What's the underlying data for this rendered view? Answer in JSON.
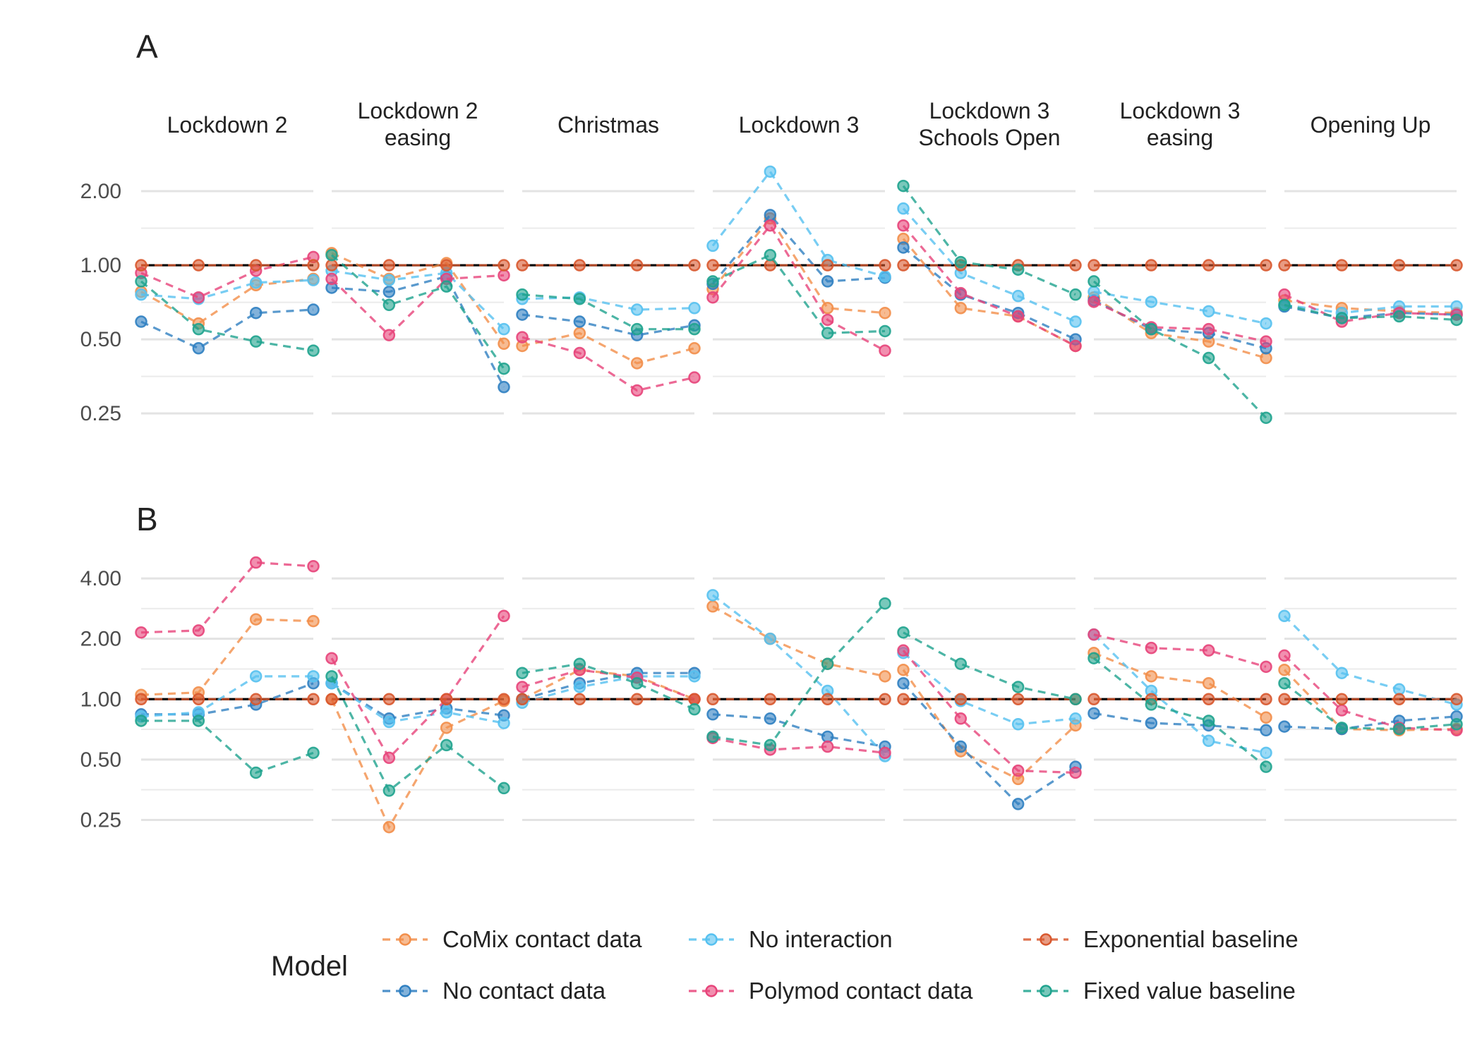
{
  "panels": [
    "A",
    "B"
  ],
  "facets": [
    [
      "Lockdown 2"
    ],
    [
      "Lockdown 2",
      "easing"
    ],
    [
      "Christmas"
    ],
    [
      "Lockdown 3"
    ],
    [
      "Lockdown 3",
      "Schools Open"
    ],
    [
      "Lockdown 3",
      "easing"
    ],
    [
      "Opening Up"
    ]
  ],
  "legend": {
    "title": "Model",
    "items": [
      {
        "name": "CoMix contact data",
        "color": "#F28E4A"
      },
      {
        "name": "No contact data",
        "color": "#2F7FC1"
      },
      {
        "name": "No interaction",
        "color": "#56C1F0"
      },
      {
        "name": "Polymod contact data",
        "color": "#E7447A"
      },
      {
        "name": "Exponential baseline",
        "color": "#D8582E"
      },
      {
        "name": "Fixed value baseline",
        "color": "#1FA38E"
      }
    ]
  },
  "chart_data": [
    {
      "type": "line",
      "panel": "A",
      "y_scale": "log2",
      "ylim": [
        0.2,
        2.8
      ],
      "yticks": [
        0.25,
        0.5,
        1.0,
        2.0
      ],
      "ytick_labels": [
        "0.25",
        "0.50",
        "1.00",
        "2.00"
      ],
      "x_points_per_facet": 4,
      "reference_line": 1.0,
      "series": [
        {
          "name": "CoMix contact data",
          "facets": [
            [
              0.78,
              0.58,
              0.83,
              0.88
            ],
            [
              1.12,
              0.88,
              1.02,
              0.48
            ],
            [
              0.47,
              0.53,
              0.4,
              0.46
            ],
            [
              0.8,
              1.55,
              0.67,
              0.64
            ],
            [
              1.28,
              0.67,
              0.62,
              0.47
            ],
            [
              0.74,
              0.53,
              0.49,
              0.42
            ],
            [
              0.72,
              0.67,
              0.65,
              0.64
            ]
          ]
        },
        {
          "name": "No contact data",
          "facets": [
            [
              0.59,
              0.46,
              0.64,
              0.66
            ],
            [
              0.81,
              0.78,
              0.9,
              0.32
            ],
            [
              0.63,
              0.59,
              0.52,
              0.57
            ],
            [
              0.84,
              1.6,
              0.86,
              0.89
            ],
            [
              1.18,
              0.76,
              0.64,
              0.5
            ],
            [
              0.72,
              0.55,
              0.53,
              0.46
            ],
            [
              0.68,
              0.61,
              0.64,
              0.63
            ]
          ]
        },
        {
          "name": "No interaction",
          "facets": [
            [
              0.76,
              0.73,
              0.85,
              0.87
            ],
            [
              0.95,
              0.87,
              0.93,
              0.55
            ],
            [
              0.73,
              0.74,
              0.66,
              0.67
            ],
            [
              1.2,
              2.4,
              1.05,
              0.9
            ],
            [
              1.7,
              0.93,
              0.75,
              0.59
            ],
            [
              0.78,
              0.71,
              0.65,
              0.58
            ],
            [
              0.69,
              0.64,
              0.68,
              0.68
            ]
          ]
        },
        {
          "name": "Polymod contact data",
          "facets": [
            [
              0.93,
              0.74,
              0.95,
              1.08
            ],
            [
              0.88,
              0.52,
              0.88,
              0.91
            ],
            [
              0.51,
              0.44,
              0.31,
              0.35
            ],
            [
              0.74,
              1.45,
              0.6,
              0.45
            ],
            [
              1.45,
              0.77,
              0.62,
              0.47
            ],
            [
              0.71,
              0.56,
              0.55,
              0.49
            ],
            [
              0.76,
              0.59,
              0.64,
              0.63
            ]
          ]
        },
        {
          "name": "Exponential baseline",
          "facets": [
            [
              1.0,
              1.0,
              1.0,
              1.0
            ],
            [
              1.0,
              1.0,
              1.0,
              1.0
            ],
            [
              1.0,
              1.0,
              1.0,
              1.0
            ],
            [
              1.0,
              1.0,
              1.0,
              1.0
            ],
            [
              1.0,
              1.0,
              1.0,
              1.0
            ],
            [
              1.0,
              1.0,
              1.0,
              1.0
            ],
            [
              1.0,
              1.0,
              1.0,
              1.0
            ]
          ]
        },
        {
          "name": "Fixed value baseline",
          "facets": [
            [
              0.86,
              0.55,
              0.49,
              0.45
            ],
            [
              1.1,
              0.69,
              0.82,
              0.38
            ],
            [
              0.76,
              0.73,
              0.55,
              0.55
            ],
            [
              0.86,
              1.1,
              0.53,
              0.54
            ],
            [
              2.1,
              1.03,
              0.96,
              0.76
            ],
            [
              0.86,
              0.55,
              0.42,
              0.24
            ],
            [
              0.69,
              0.61,
              0.62,
              0.6
            ]
          ]
        }
      ]
    },
    {
      "type": "line",
      "panel": "B",
      "y_scale": "log2",
      "ylim": [
        0.2,
        6.0
      ],
      "yticks": [
        0.25,
        0.5,
        1.0,
        2.0,
        4.0
      ],
      "ytick_labels": [
        "0.25",
        "0.50",
        "1.00",
        "2.00",
        "4.00"
      ],
      "x_points_per_facet": 4,
      "reference_line": 1.0,
      "series": [
        {
          "name": "CoMix contact data",
          "facets": [
            [
              1.05,
              1.08,
              2.5,
              2.45
            ],
            [
              1.0,
              0.23,
              0.72,
              0.98
            ],
            [
              1.0,
              1.4,
              1.3,
              1.0
            ],
            [
              2.9,
              2.0,
              1.5,
              1.3
            ],
            [
              1.4,
              0.55,
              0.4,
              0.74
            ],
            [
              1.7,
              1.3,
              1.2,
              0.81
            ],
            [
              1.4,
              0.71,
              0.7,
              0.71
            ]
          ]
        },
        {
          "name": "No contact data",
          "facets": [
            [
              0.84,
              0.84,
              0.94,
              1.2
            ],
            [
              1.2,
              0.8,
              0.9,
              0.83
            ],
            [
              1.0,
              1.2,
              1.35,
              1.35
            ],
            [
              0.84,
              0.8,
              0.65,
              0.58
            ],
            [
              1.2,
              0.58,
              0.3,
              0.46
            ],
            [
              0.85,
              0.76,
              0.74,
              0.7
            ],
            [
              0.73,
              0.71,
              0.78,
              0.82
            ]
          ]
        },
        {
          "name": "No interaction",
          "facets": [
            [
              0.82,
              0.86,
              1.3,
              1.3
            ],
            [
              1.2,
              0.77,
              0.86,
              0.76
            ],
            [
              0.96,
              1.15,
              1.3,
              1.3
            ],
            [
              3.3,
              2.0,
              1.1,
              0.52
            ],
            [
              1.7,
              0.98,
              0.75,
              0.8
            ],
            [
              2.1,
              1.1,
              0.62,
              0.54
            ],
            [
              2.6,
              1.35,
              1.12,
              0.94
            ]
          ]
        },
        {
          "name": "Polymod contact data",
          "facets": [
            [
              2.15,
              2.2,
              4.8,
              4.6
            ],
            [
              1.6,
              0.51,
              1.0,
              2.6
            ],
            [
              1.15,
              1.4,
              1.28,
              1.0
            ],
            [
              0.64,
              0.56,
              0.58,
              0.54
            ],
            [
              1.75,
              0.8,
              0.44,
              0.43
            ],
            [
              2.1,
              1.8,
              1.75,
              1.45
            ],
            [
              1.65,
              0.88,
              0.72,
              0.7
            ]
          ]
        },
        {
          "name": "Exponential baseline",
          "facets": [
            [
              1.0,
              1.0,
              1.0,
              1.0
            ],
            [
              1.0,
              1.0,
              1.0,
              1.0
            ],
            [
              1.0,
              1.0,
              1.0,
              1.0
            ],
            [
              1.0,
              1.0,
              1.0,
              1.0
            ],
            [
              1.0,
              1.0,
              1.0,
              1.0
            ],
            [
              1.0,
              1.0,
              1.0,
              1.0
            ],
            [
              1.0,
              1.0,
              1.0,
              1.0
            ]
          ]
        },
        {
          "name": "Fixed value baseline",
          "facets": [
            [
              0.78,
              0.78,
              0.43,
              0.54
            ],
            [
              1.3,
              0.35,
              0.59,
              0.36
            ],
            [
              1.35,
              1.5,
              1.2,
              0.89
            ],
            [
              0.65,
              0.59,
              1.5,
              3.0
            ],
            [
              2.15,
              1.5,
              1.15,
              1.0
            ],
            [
              1.6,
              0.94,
              0.78,
              0.46
            ],
            [
              1.2,
              0.72,
              0.71,
              0.75
            ]
          ]
        }
      ]
    }
  ]
}
